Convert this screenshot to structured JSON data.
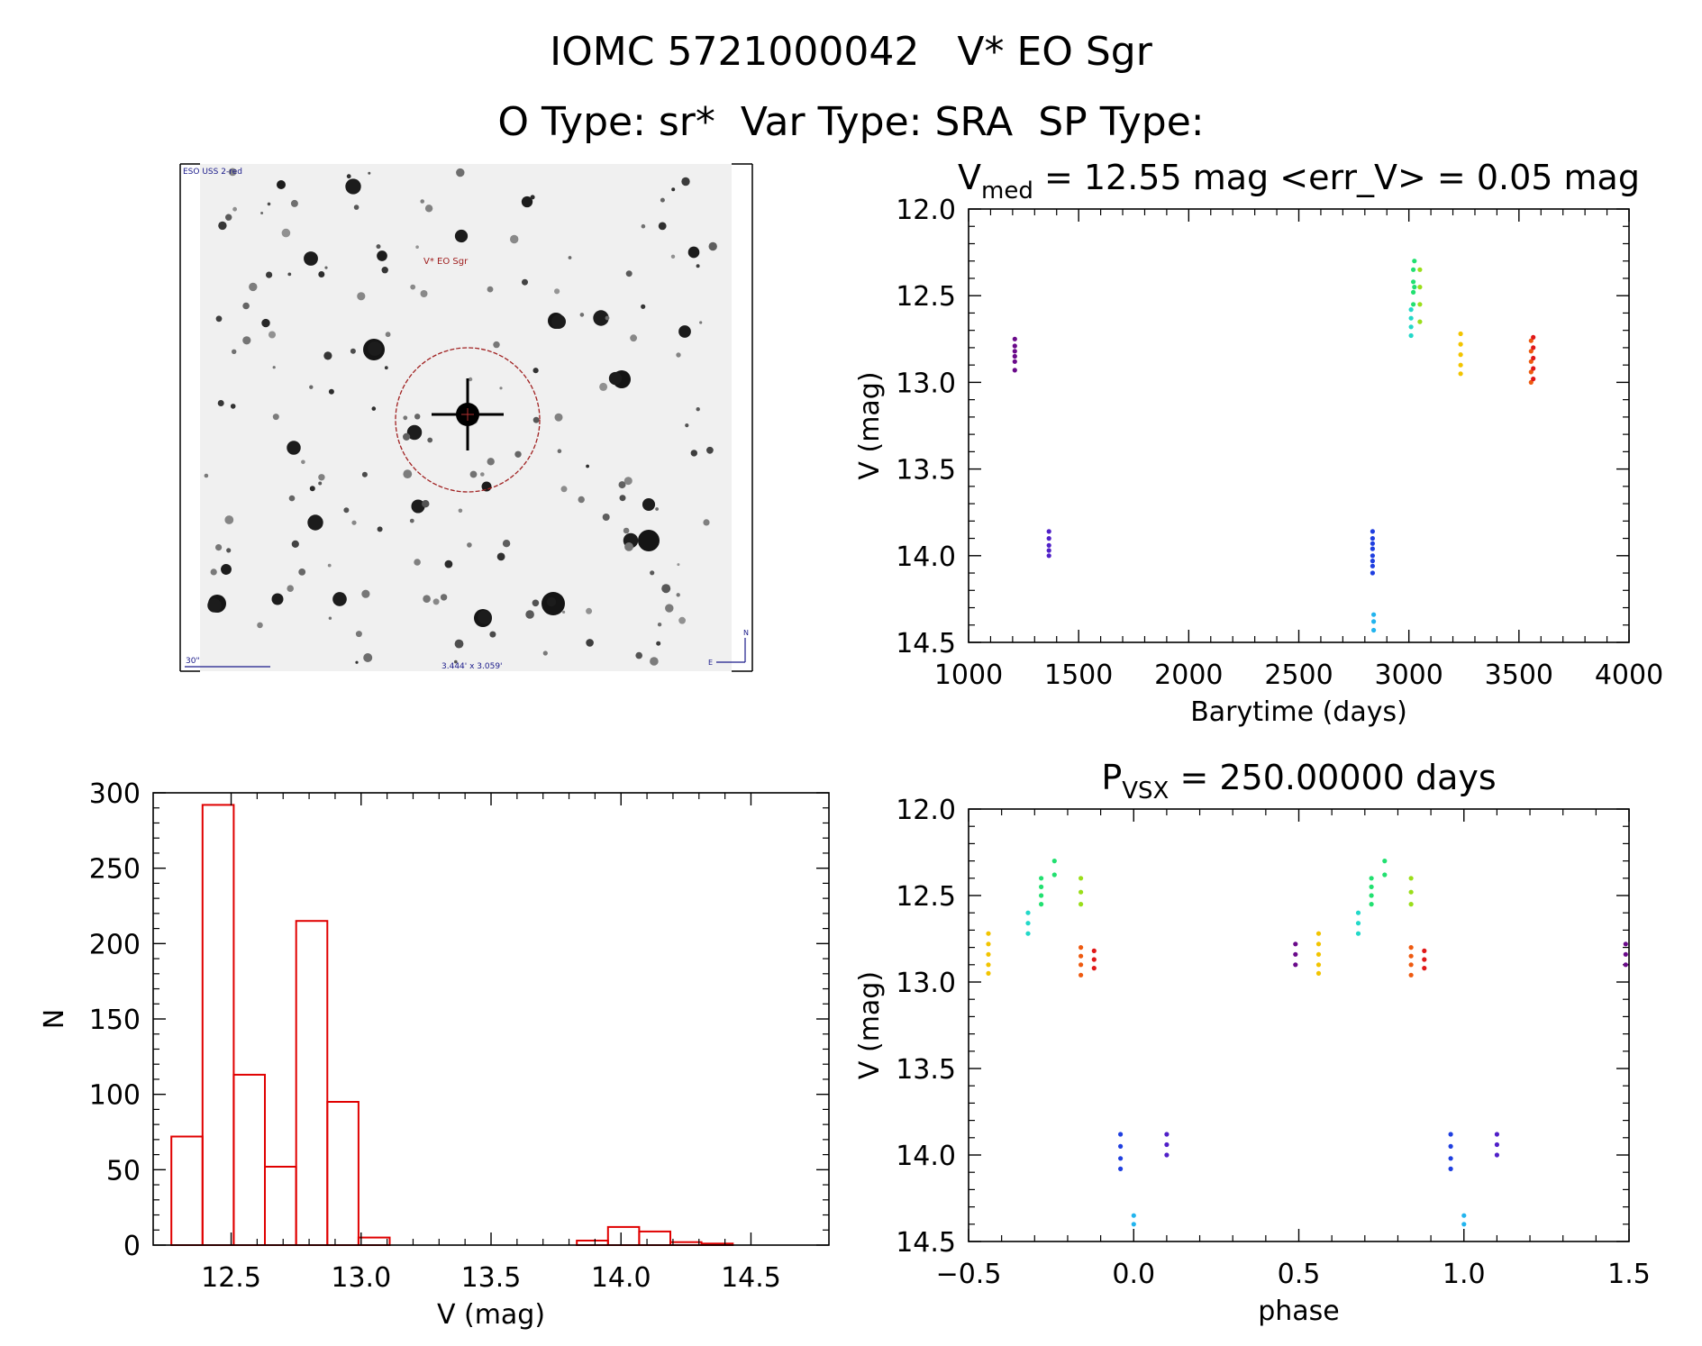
{
  "header": {
    "line1": "IOMC 5721000042   V* EO Sgr",
    "line2": "O Type: sr*  Var Type: SRA  SP Type:"
  },
  "image_panel": {
    "survey_label": "ESO USS 2-red",
    "target_label": "V* EO Sgr",
    "scale_label": "30\"",
    "size_label": "3.444' x 3.059'",
    "north_label": "N",
    "east_label": "E"
  },
  "chart_data": [
    {
      "id": "lightcurve",
      "type": "scatter",
      "title_main": "V",
      "title_sub": "med",
      "title_rest": " = 12.55 mag <err_V> = 0.05 mag",
      "xlabel": "Barytime (days)",
      "ylabel": "V (mag)",
      "xlim": [
        1000,
        4000
      ],
      "ylim": [
        12.0,
        14.5
      ],
      "y_inverted": true,
      "xticks": [
        "1000",
        "1500",
        "2000",
        "2500",
        "3000",
        "3500",
        "4000"
      ],
      "yticks": [
        "12.0",
        "12.5",
        "13.0",
        "13.5",
        "14.0",
        "14.5"
      ],
      "series": [
        {
          "color": "#6a0a8a",
          "points": [
            [
              1210,
              12.75
            ],
            [
              1210,
              12.79
            ],
            [
              1210,
              12.82
            ],
            [
              1210,
              12.85
            ],
            [
              1210,
              12.88
            ],
            [
              1210,
              12.93
            ]
          ]
        },
        {
          "color": "#5020c8",
          "points": [
            [
              1365,
              13.86
            ],
            [
              1365,
              13.9
            ],
            [
              1365,
              13.94
            ],
            [
              1365,
              13.97
            ],
            [
              1365,
              14.0
            ]
          ]
        },
        {
          "color": "#1f3fe0",
          "points": [
            [
              2835,
              13.86
            ],
            [
              2835,
              13.9
            ],
            [
              2835,
              13.93
            ],
            [
              2835,
              13.96
            ],
            [
              2835,
              14.0
            ],
            [
              2835,
              14.03
            ],
            [
              2835,
              14.06
            ],
            [
              2835,
              14.1
            ]
          ]
        },
        {
          "color": "#22b4ee",
          "points": [
            [
              2840,
              14.34
            ],
            [
              2840,
              14.38
            ],
            [
              2840,
              14.43
            ]
          ]
        },
        {
          "color": "#22d8c8",
          "points": [
            [
              3010,
              12.58
            ],
            [
              3010,
              12.63
            ],
            [
              3010,
              12.68
            ],
            [
              3010,
              12.73
            ]
          ]
        },
        {
          "color": "#22e070",
          "points": [
            [
              3020,
              12.35
            ],
            [
              3020,
              12.42
            ],
            [
              3020,
              12.48
            ],
            [
              3020,
              12.55
            ],
            [
              3025,
              12.3
            ],
            [
              3025,
              12.45
            ]
          ]
        },
        {
          "color": "#9ade1a",
          "points": [
            [
              3050,
              12.35
            ],
            [
              3050,
              12.45
            ],
            [
              3050,
              12.55
            ],
            [
              3050,
              12.65
            ]
          ]
        },
        {
          "color": "#f2c400",
          "points": [
            [
              3235,
              12.72
            ],
            [
              3235,
              12.78
            ],
            [
              3235,
              12.84
            ],
            [
              3235,
              12.9
            ],
            [
              3235,
              12.95
            ]
          ]
        },
        {
          "color": "#ee5a10",
          "points": [
            [
              3555,
              12.76
            ],
            [
              3555,
              12.82
            ],
            [
              3555,
              12.88
            ],
            [
              3555,
              12.94
            ],
            [
              3555,
              13.0
            ]
          ]
        },
        {
          "color": "#e01818",
          "points": [
            [
              3565,
              12.74
            ],
            [
              3565,
              12.8
            ],
            [
              3565,
              12.86
            ],
            [
              3565,
              12.92
            ],
            [
              3565,
              12.98
            ]
          ]
        }
      ]
    },
    {
      "id": "histogram",
      "type": "bar",
      "title": "",
      "xlabel": "V (mag)",
      "ylabel": "N",
      "xlim": [
        12.2,
        14.8
      ],
      "ylim": [
        0,
        300
      ],
      "xticks": [
        "12.5",
        "13.0",
        "13.5",
        "14.0",
        "14.5"
      ],
      "yticks": [
        "0",
        "50",
        "100",
        "150",
        "200",
        "250",
        "300"
      ],
      "bin_width": 0.12,
      "bins": [
        {
          "x": 12.27,
          "value": 72
        },
        {
          "x": 12.39,
          "value": 292
        },
        {
          "x": 12.51,
          "value": 113
        },
        {
          "x": 12.63,
          "value": 52
        },
        {
          "x": 12.75,
          "value": 215
        },
        {
          "x": 12.87,
          "value": 95
        },
        {
          "x": 12.99,
          "value": 5
        },
        {
          "x": 13.11,
          "value": 0
        },
        {
          "x": 13.23,
          "value": 0
        },
        {
          "x": 13.35,
          "value": 0
        },
        {
          "x": 13.47,
          "value": 0
        },
        {
          "x": 13.59,
          "value": 0
        },
        {
          "x": 13.71,
          "value": 0
        },
        {
          "x": 13.83,
          "value": 3
        },
        {
          "x": 13.95,
          "value": 12
        },
        {
          "x": 14.07,
          "value": 9
        },
        {
          "x": 14.19,
          "value": 2
        },
        {
          "x": 14.31,
          "value": 1
        },
        {
          "x": 14.43,
          "value": 0
        }
      ]
    },
    {
      "id": "phased",
      "type": "scatter",
      "title_main": "P",
      "title_sub": "VSX",
      "title_rest": " = 250.00000 days",
      "xlabel": "phase",
      "ylabel": "V (mag)",
      "xlim": [
        -0.5,
        1.5
      ],
      "ylim": [
        12.0,
        14.5
      ],
      "y_inverted": true,
      "xticks": [
        "−0.5",
        "0.0",
        "0.5",
        "1.0",
        "1.5"
      ],
      "yticks": [
        "12.0",
        "12.5",
        "13.0",
        "13.5",
        "14.0",
        "14.5"
      ],
      "series": [
        {
          "color": "#f2c400",
          "points": [
            [
              -0.44,
              12.72
            ],
            [
              -0.44,
              12.78
            ],
            [
              -0.44,
              12.84
            ],
            [
              -0.44,
              12.9
            ],
            [
              -0.44,
              12.95
            ],
            [
              0.56,
              12.72
            ],
            [
              0.56,
              12.78
            ],
            [
              0.56,
              12.84
            ],
            [
              0.56,
              12.9
            ],
            [
              0.56,
              12.95
            ]
          ]
        },
        {
          "color": "#22d8c8",
          "points": [
            [
              -0.32,
              12.6
            ],
            [
              -0.32,
              12.66
            ],
            [
              -0.32,
              12.72
            ],
            [
              0.68,
              12.6
            ],
            [
              0.68,
              12.66
            ],
            [
              0.68,
              12.72
            ]
          ]
        },
        {
          "color": "#22e070",
          "points": [
            [
              -0.28,
              12.4
            ],
            [
              -0.28,
              12.45
            ],
            [
              -0.28,
              12.5
            ],
            [
              -0.28,
              12.55
            ],
            [
              -0.24,
              12.3
            ],
            [
              -0.24,
              12.38
            ],
            [
              0.72,
              12.4
            ],
            [
              0.72,
              12.45
            ],
            [
              0.72,
              12.5
            ],
            [
              0.72,
              12.55
            ],
            [
              0.76,
              12.3
            ],
            [
              0.76,
              12.38
            ]
          ]
        },
        {
          "color": "#9ade1a",
          "points": [
            [
              -0.16,
              12.4
            ],
            [
              -0.16,
              12.48
            ],
            [
              -0.16,
              12.55
            ],
            [
              0.84,
              12.4
            ],
            [
              0.84,
              12.48
            ],
            [
              0.84,
              12.55
            ]
          ]
        },
        {
          "color": "#ee5a10",
          "points": [
            [
              -0.16,
              12.8
            ],
            [
              -0.16,
              12.85
            ],
            [
              -0.16,
              12.9
            ],
            [
              -0.16,
              12.96
            ],
            [
              0.84,
              12.8
            ],
            [
              0.84,
              12.85
            ],
            [
              0.84,
              12.9
            ],
            [
              0.84,
              12.96
            ]
          ]
        },
        {
          "color": "#e01818",
          "points": [
            [
              -0.12,
              12.82
            ],
            [
              -0.12,
              12.87
            ],
            [
              -0.12,
              12.92
            ],
            [
              0.88,
              12.82
            ],
            [
              0.88,
              12.87
            ],
            [
              0.88,
              12.92
            ]
          ]
        },
        {
          "color": "#1f3fe0",
          "points": [
            [
              -0.04,
              13.88
            ],
            [
              -0.04,
              13.95
            ],
            [
              -0.04,
              14.02
            ],
            [
              -0.04,
              14.08
            ],
            [
              0.96,
              13.88
            ],
            [
              0.96,
              13.95
            ],
            [
              0.96,
              14.02
            ],
            [
              0.96,
              14.08
            ]
          ]
        },
        {
          "color": "#22b4ee",
          "points": [
            [
              0.0,
              14.35
            ],
            [
              0.0,
              14.4
            ],
            [
              1.0,
              14.35
            ],
            [
              1.0,
              14.4
            ]
          ]
        },
        {
          "color": "#5020c8",
          "points": [
            [
              0.1,
              13.88
            ],
            [
              0.1,
              13.94
            ],
            [
              0.1,
              14.0
            ],
            [
              1.1,
              13.88
            ],
            [
              1.1,
              13.94
            ],
            [
              1.1,
              14.0
            ]
          ]
        },
        {
          "color": "#6a0a8a",
          "points": [
            [
              0.49,
              12.78
            ],
            [
              0.49,
              12.84
            ],
            [
              0.49,
              12.9
            ],
            [
              1.49,
              12.78
            ],
            [
              1.49,
              12.84
            ],
            [
              1.49,
              12.9
            ]
          ]
        }
      ]
    }
  ]
}
